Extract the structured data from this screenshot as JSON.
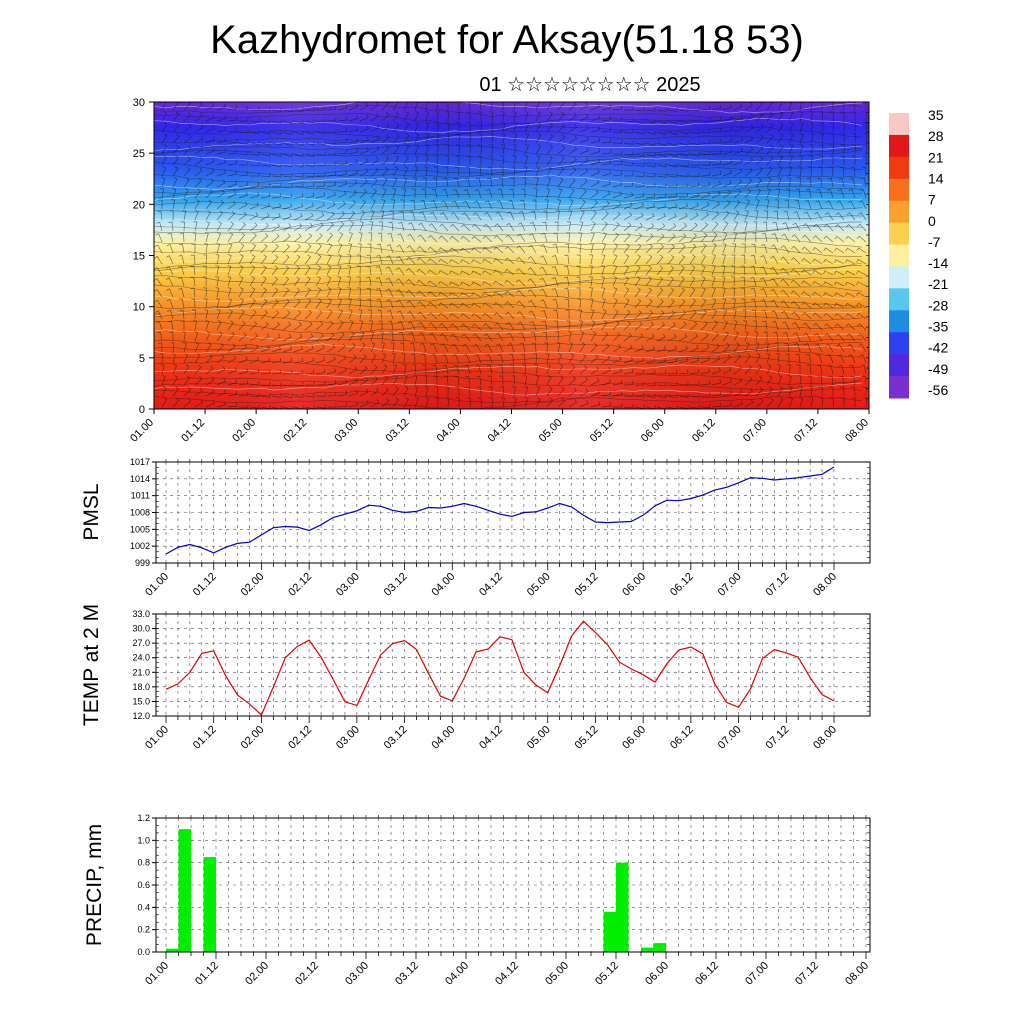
{
  "header": {
    "title": "Kazhydromet for Aksay(51.18 53)",
    "subtitle": "01 ☆☆☆☆☆☆☆☆ 2025"
  },
  "time_labels": [
    "01.00",
    "01.12",
    "02.00",
    "02.12",
    "03.00",
    "03.12",
    "04.00",
    "04.12",
    "05.00",
    "05.12",
    "06.00",
    "06.12",
    "07.00",
    "07.12",
    "08.00"
  ],
  "colorbar": {
    "labels": [
      "35",
      "28",
      "21",
      "14",
      "7",
      "0",
      "-7",
      "-14",
      "-21",
      "-28",
      "-35",
      "-42",
      "-49",
      "-56"
    ],
    "colors_hot_to_cold": [
      "#f8c8c8",
      "#e01818",
      "#f03a10",
      "#f5701a",
      "#f9a030",
      "#fbd050",
      "#fdf0a0",
      "#d0eef8",
      "#58c8f0",
      "#1e8ce0",
      "#2e40f0",
      "#5028e0",
      "#7830d0"
    ]
  },
  "chart_data": [
    {
      "type": "heatmap",
      "name": "cross-section",
      "ylabel": "",
      "ylim": [
        0,
        30
      ],
      "yticks": [
        "0",
        "5",
        "10",
        "15",
        "20",
        "25",
        "30"
      ],
      "x": [
        "01.00",
        "01.12",
        "02.00",
        "02.12",
        "03.00",
        "03.12",
        "04.00",
        "04.12",
        "05.00",
        "05.12",
        "06.00",
        "06.12",
        "07.00",
        "07.12",
        "08.00"
      ],
      "value_range": [
        -56,
        35
      ],
      "isolines_and_wind_barbs": true
    },
    {
      "type": "line",
      "ylabel": "PMSL",
      "ylim": [
        999,
        1017
      ],
      "yticks": [
        "999",
        "1002",
        "1005",
        "1008",
        "1011",
        "1014",
        "1017"
      ],
      "x_labels": [
        "01.00",
        "01.12",
        "02.00",
        "02.12",
        "03.00",
        "03.12",
        "04.00",
        "04.12",
        "05.00",
        "05.12",
        "06.00",
        "06.12",
        "07.00",
        "07.12",
        "08.00"
      ],
      "step_hours": 3,
      "color": "#0000cc",
      "values": [
        1000.6,
        1001.8,
        1002.3,
        1001.7,
        1000.8,
        1001.8,
        1002.5,
        1002.7,
        1004.0,
        1005.3,
        1005.5,
        1005.4,
        1004.8,
        1005.8,
        1007.1,
        1007.7,
        1008.3,
        1009.3,
        1009.1,
        1008.4,
        1008.0,
        1008.2,
        1008.9,
        1008.8,
        1009.1,
        1009.6,
        1009.1,
        1008.4,
        1007.7,
        1007.3,
        1008.0,
        1008.1,
        1008.8,
        1009.6,
        1009.0,
        1007.5,
        1006.3,
        1006.2,
        1006.3,
        1006.4,
        1007.5,
        1009.2,
        1010.2,
        1010.1,
        1010.5,
        1011.1,
        1012.0,
        1012.5,
        1013.3,
        1014.2,
        1014.1,
        1013.8,
        1014.0,
        1014.2,
        1014.5,
        1014.8,
        1016.1
      ]
    },
    {
      "type": "line",
      "ylabel": "TEMP at 2 M",
      "ylim": [
        12,
        33
      ],
      "yticks": [
        "12.0",
        "15.0",
        "18.0",
        "21.0",
        "24.0",
        "27.0",
        "30.0",
        "33.0"
      ],
      "x_labels": [
        "01.00",
        "01.12",
        "02.00",
        "02.12",
        "03.00",
        "03.12",
        "04.00",
        "04.12",
        "05.00",
        "05.12",
        "06.00",
        "06.12",
        "07.00",
        "07.12",
        "08.00"
      ],
      "step_hours": 3,
      "color": "#e00000",
      "values": [
        17.5,
        18.6,
        21.0,
        24.9,
        25.4,
        20.3,
        16.3,
        14.5,
        12.2,
        18.0,
        24.0,
        26.3,
        27.6,
        24.1,
        19.6,
        14.9,
        14.2,
        19.5,
        24.6,
        26.9,
        27.5,
        25.7,
        20.8,
        16.1,
        15.1,
        19.8,
        25.2,
        25.8,
        28.3,
        27.7,
        21.0,
        18.4,
        16.8,
        22.3,
        28.5,
        31.5,
        29.2,
        26.7,
        23.1,
        21.7,
        20.5,
        19.0,
        22.8,
        25.6,
        26.2,
        24.8,
        18.6,
        14.8,
        13.8,
        17.6,
        23.8,
        25.7,
        25.0,
        24.1,
        19.9,
        16.4,
        15.1
      ]
    },
    {
      "type": "bar",
      "ylabel": "PRECIP, mm",
      "ylim": [
        0,
        1.2
      ],
      "yticks": [
        "0.0",
        "0.2",
        "0.4",
        "0.6",
        "0.8",
        "1.0",
        "1.2"
      ],
      "x_labels": [
        "01.00",
        "01.12",
        "02.00",
        "02.12",
        "03.00",
        "03.12",
        "04.00",
        "04.12",
        "05.00",
        "05.12",
        "06.00",
        "06.12",
        "07.00",
        "07.12",
        "08.00"
      ],
      "step_hours": 3,
      "color": "#00ee00",
      "values": [
        0.03,
        1.1,
        0,
        0.85,
        0,
        0,
        0,
        0,
        0,
        0,
        0,
        0,
        0,
        0,
        0,
        0,
        0,
        0,
        0,
        0,
        0,
        0,
        0,
        0,
        0,
        0,
        0,
        0,
        0,
        0,
        0,
        0,
        0,
        0,
        0,
        0.36,
        0.8,
        0,
        0.04,
        0.08,
        0,
        0,
        0,
        0,
        0,
        0,
        0,
        0,
        0,
        0,
        0,
        0,
        0,
        0,
        0,
        0,
        0
      ]
    }
  ]
}
